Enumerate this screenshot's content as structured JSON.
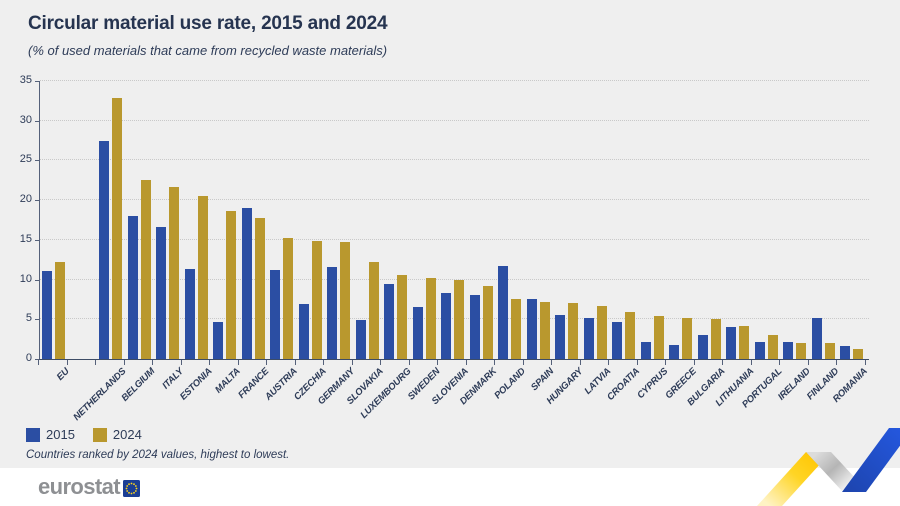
{
  "note": "Countries ranked by 2024 values, highest to lowest.",
  "logo": {
    "text": "eurostat"
  },
  "colors": {
    "background": "#efefef",
    "footer_band": "#ffffff",
    "text_navy": "#2e3c58",
    "bar_2015": "#2b4ea3",
    "bar_2024": "#b9982e",
    "gridline": "#c9c9c9",
    "ribbon_yellow": "#ffc400",
    "ribbon_blue": "#1f4fd0",
    "logo_gray": "#8e9093",
    "flag_blue": "#1b3e94",
    "flag_stars": "#ffd617"
  },
  "chart_data": {
    "type": "bar",
    "title": "Circular material use rate, 2015 and 2024",
    "subtitle": "(% of used materials that came from recycled waste materials)",
    "categories": [
      "EU",
      "NETHERLANDS",
      "BELGIUM",
      "ITALY",
      "ESTONIA",
      "MALTA",
      "FRANCE",
      "AUSTRIA",
      "CZECHIA",
      "GERMANY",
      "SLOVAKIA",
      "LUXEMBOURG",
      "SWEDEN",
      "SLOVENIA",
      "DENMARK",
      "POLAND",
      "SPAIN",
      "HUNGARY",
      "LATVIA",
      "CROATIA",
      "CYPRUS",
      "GREECE",
      "BULGARIA",
      "LITHUANIA",
      "PORTUGAL",
      "IRELAND",
      "FINLAND",
      "ROMANIA"
    ],
    "series": [
      {
        "name": "2015",
        "color": "#2b4ea3",
        "values": [
          11.1,
          27.4,
          18.0,
          16.6,
          11.3,
          4.7,
          19.0,
          11.2,
          6.9,
          11.6,
          4.9,
          9.4,
          6.5,
          8.3,
          8.1,
          11.7,
          7.5,
          5.5,
          5.2,
          4.6,
          2.2,
          1.8,
          3.0,
          4.0,
          2.1,
          2.1,
          5.2,
          1.6
        ]
      },
      {
        "name": "2024",
        "color": "#b9982e",
        "values": [
          12.2,
          32.8,
          22.6,
          21.7,
          20.5,
          18.6,
          17.8,
          15.2,
          14.8,
          14.7,
          12.2,
          10.6,
          10.2,
          10.0,
          9.2,
          7.6,
          7.2,
          7.1,
          6.7,
          5.9,
          5.4,
          5.2,
          5.0,
          4.1,
          3.0,
          2.0,
          2.0,
          1.3
        ]
      }
    ],
    "ylabel": "",
    "xlabel": "",
    "ylim": [
      0,
      35
    ],
    "yticks": [
      0,
      5,
      10,
      15,
      20,
      25,
      30,
      35
    ],
    "grid": "horizontal-dotted",
    "legend_position": "bottom-left",
    "x_tick_label_rotation": -45,
    "note": "Countries ranked by 2024 values, highest to lowest."
  }
}
